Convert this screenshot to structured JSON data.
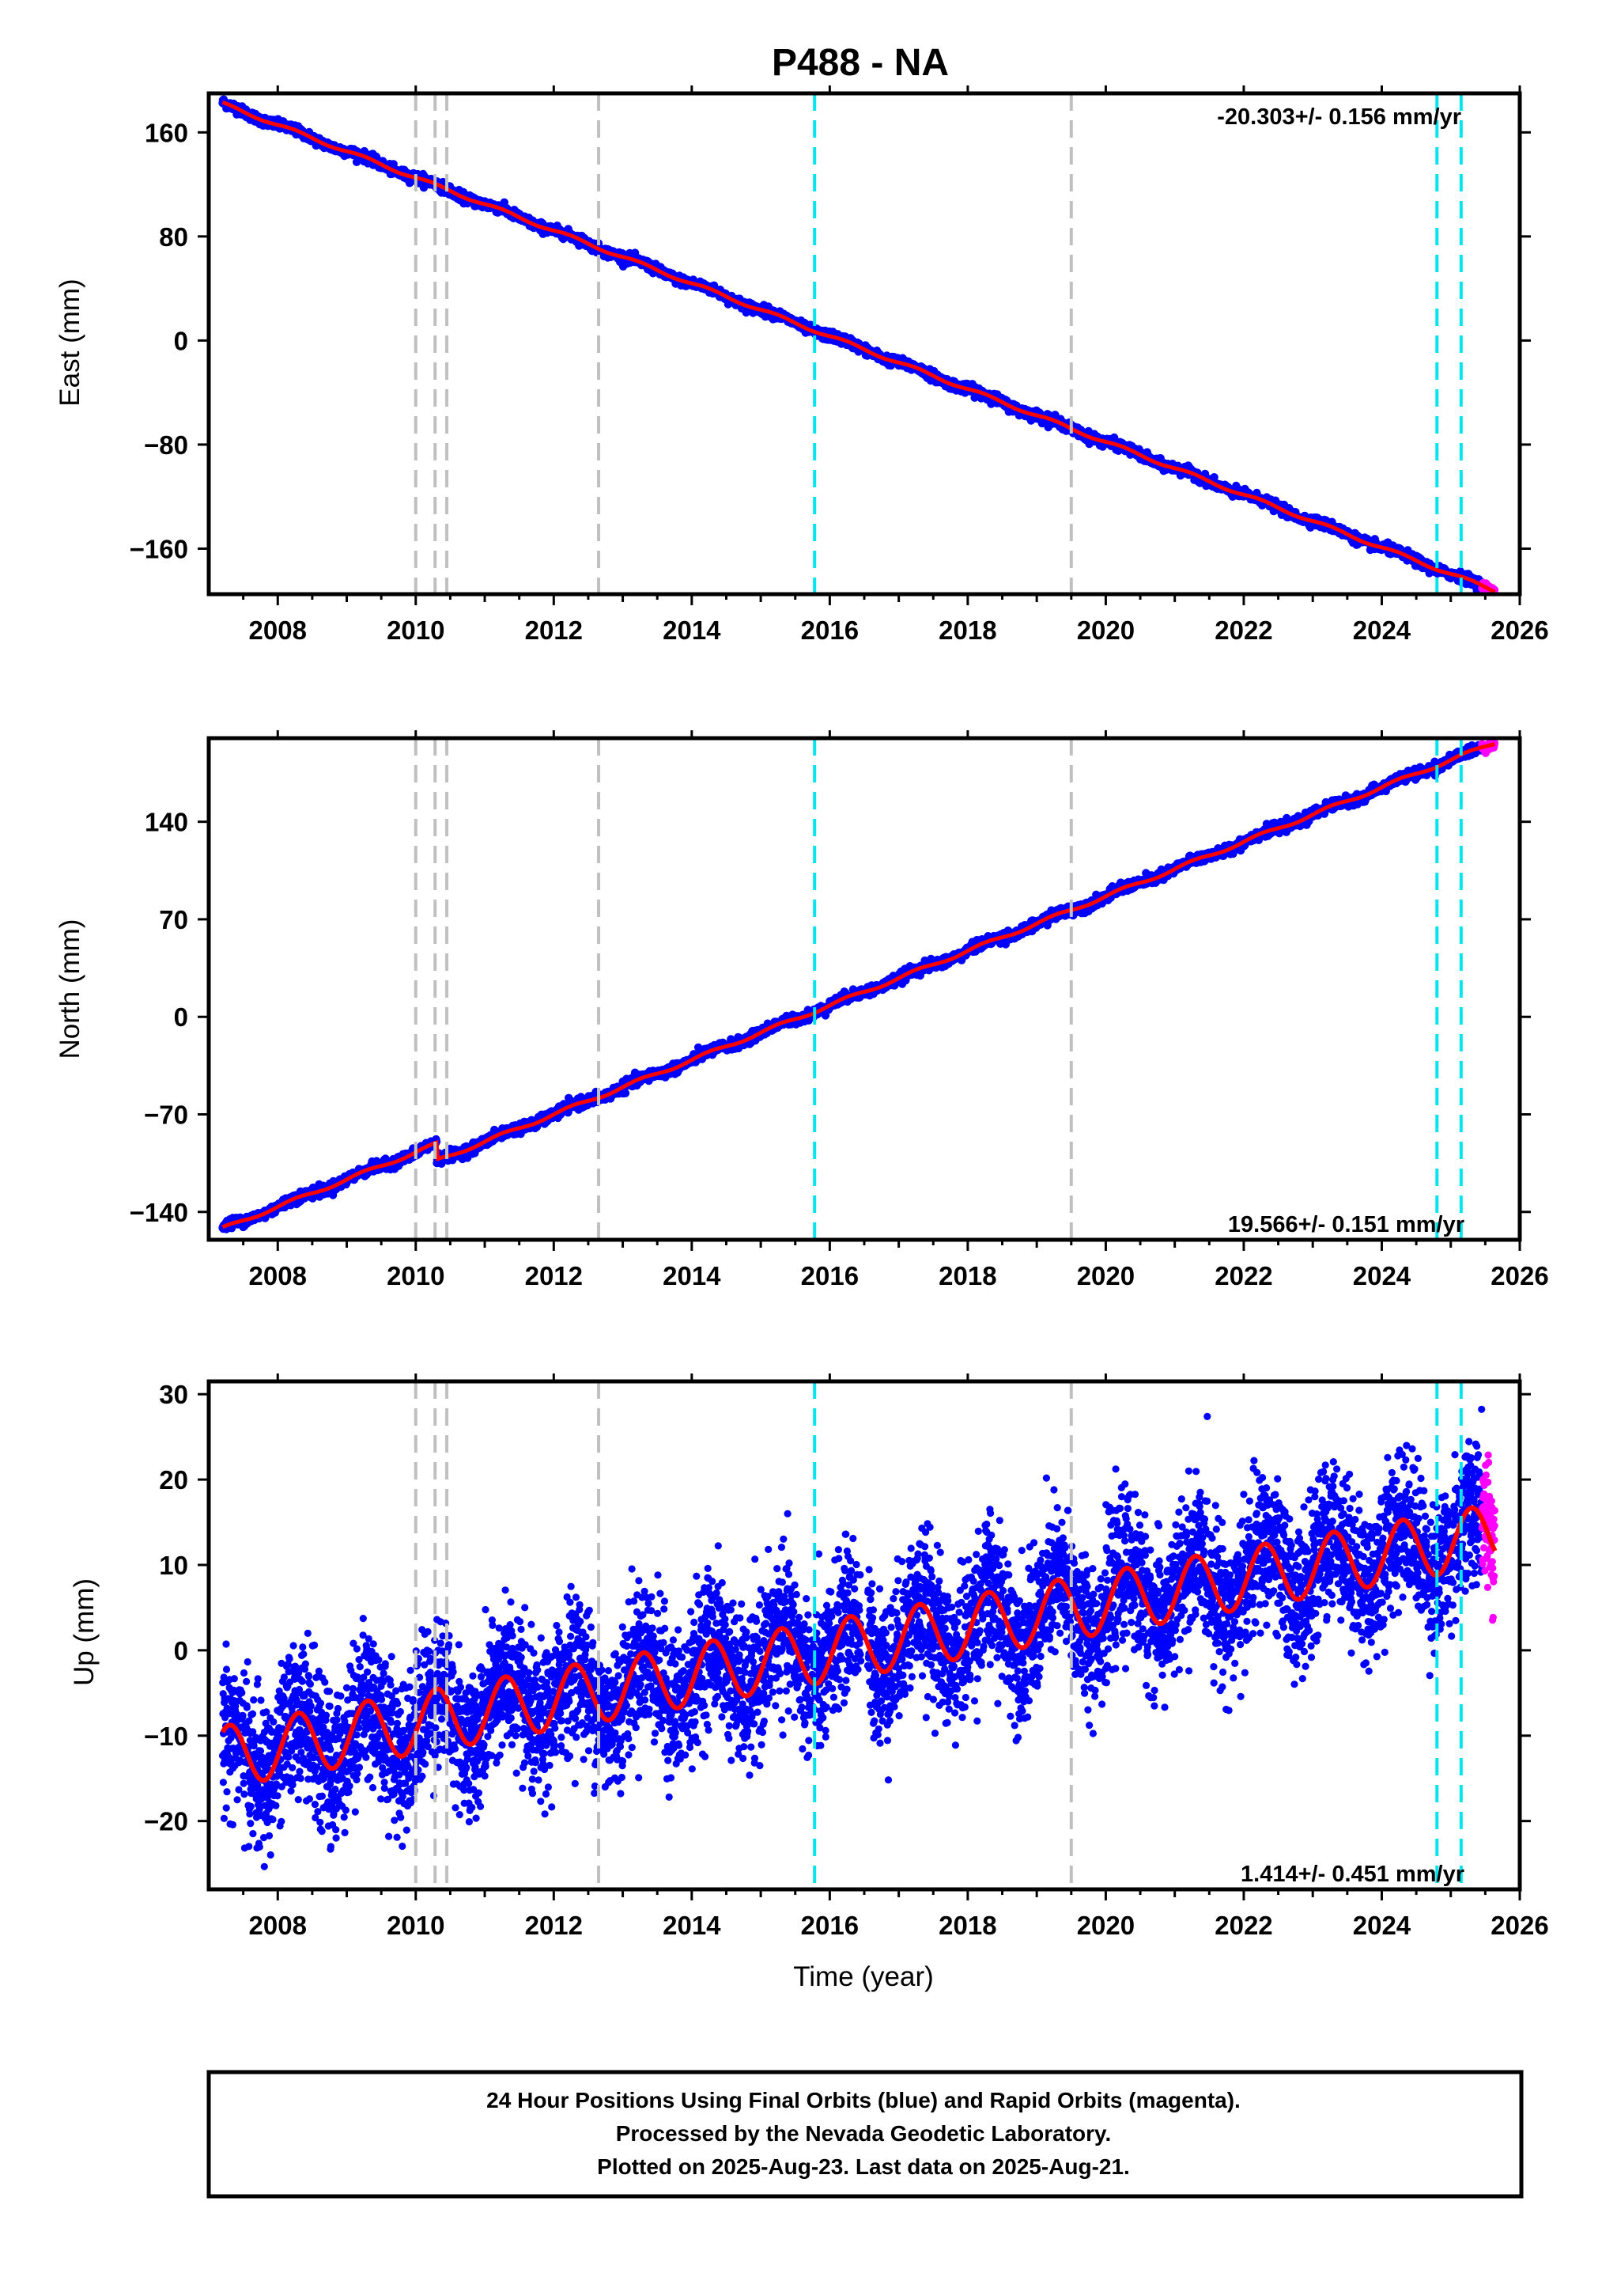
{
  "title": "P488 - NA",
  "colors": {
    "final_orbits": "#0000ff",
    "rapid_orbits": "#ff00ff",
    "model_fit": "#ff0000",
    "equipment_change_line": "#c0c0c0",
    "earthquake_line": "#00e5ee",
    "frame": "#000000"
  },
  "x_label": "Time (year)",
  "footer": {
    "line1": "24 Hour Positions Using Final Orbits (blue) and Rapid Orbits (magenta).",
    "line2": "Processed by the Nevada Geodetic Laboratory.",
    "line3": "Plotted on 2025-Aug-23. Last data on 2025-Aug-21."
  },
  "chart_data": [
    {
      "type": "scatter",
      "name": "east",
      "ylabel": "East (mm)",
      "rate_label": "-20.303+/- 0.156 mm/yr",
      "rate_position": "top-right",
      "xlim": [
        2007.0,
        2026.0
      ],
      "ylim": [
        -195,
        190
      ],
      "x_ticks": [
        2008,
        2010,
        2012,
        2014,
        2016,
        2018,
        2020,
        2022,
        2024,
        2026
      ],
      "y_ticks": [
        160,
        80,
        0,
        -80,
        -160
      ],
      "y_tick_labels": [
        "160",
        "80",
        "0",
        "−80",
        "−160"
      ],
      "grid": false,
      "trend": {
        "start_year": 2007.2,
        "start_value": 182,
        "rate": -20.303,
        "noise": 1.8
      },
      "rapid_segment": {
        "start_year": 2025.45,
        "end_year": 2025.64
      }
    },
    {
      "type": "scatter",
      "name": "north",
      "ylabel": "North (mm)",
      "rate_label": "19.566+/- 0.151 mm/yr",
      "rate_position": "bottom-right",
      "xlim": [
        2007.0,
        2026.0
      ],
      "ylim": [
        -160,
        200
      ],
      "x_ticks": [
        2008,
        2010,
        2012,
        2014,
        2016,
        2018,
        2020,
        2022,
        2024,
        2026
      ],
      "y_ticks": [
        140,
        70,
        0,
        -70,
        -140
      ],
      "y_tick_labels": [
        "140",
        "70",
        "0",
        "−70",
        "−140"
      ],
      "grid": false,
      "trend": {
        "start_year": 2007.2,
        "start_value": -152,
        "rate": 19.566,
        "noise": 1.8
      },
      "offset": {
        "year": 2010.3,
        "value": -12
      },
      "rapid_segment": {
        "start_year": 2025.45,
        "end_year": 2025.64
      }
    },
    {
      "type": "scatter",
      "name": "up",
      "ylabel": "Up (mm)",
      "rate_label": "1.414+/- 0.451 mm/yr",
      "rate_position": "bottom-right",
      "xlim": [
        2007.0,
        2026.0
      ],
      "ylim": [
        -28,
        31.5
      ],
      "x_ticks": [
        2008,
        2010,
        2012,
        2014,
        2016,
        2018,
        2020,
        2022,
        2024,
        2026
      ],
      "y_ticks": [
        30,
        20,
        10,
        0,
        -10,
        -20
      ],
      "y_tick_labels": [
        "30",
        "20",
        "10",
        "0",
        "−10",
        "−20"
      ],
      "grid": false,
      "trend": {
        "start_year": 2007.2,
        "start_value": -12.5,
        "rate": 1.414,
        "noise": 4.2
      },
      "seasonal_amplitude": 3.6,
      "rapid_segment": {
        "start_year": 2025.45,
        "end_year": 2025.64
      }
    }
  ],
  "vertical_markers": {
    "equipment_change_years": [
      2010.0,
      2010.28,
      2010.45,
      2012.65,
      2019.5
    ],
    "earthquake_years": [
      2015.78,
      2024.8,
      2025.15
    ]
  }
}
